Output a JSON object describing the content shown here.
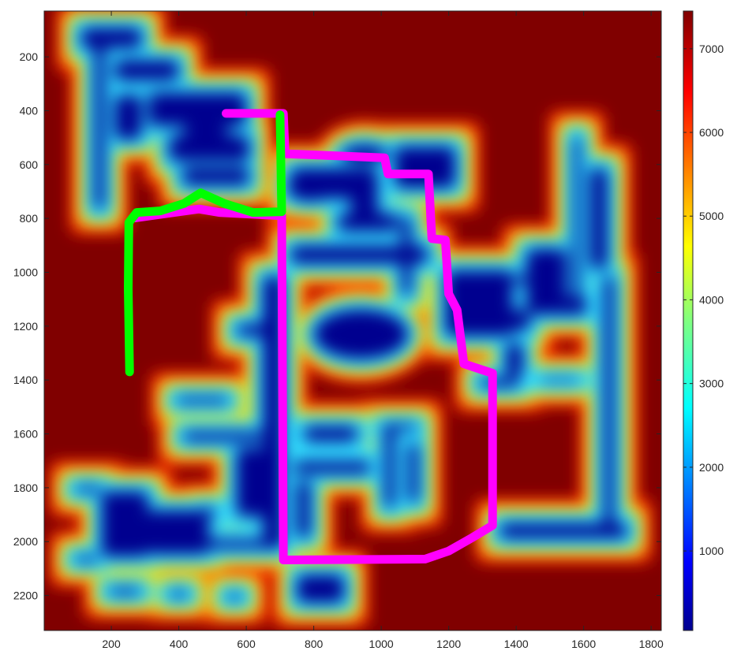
{
  "chart_data": {
    "type": "heatmap",
    "title": "",
    "xlabel": "",
    "ylabel": "",
    "xlim": [
      1,
      1830
    ],
    "ylim": [
      2330,
      30
    ],
    "y_reversed": true,
    "x_ticks": [
      200,
      400,
      600,
      800,
      1000,
      1200,
      1400,
      1600,
      1800
    ],
    "y_ticks": [
      200,
      400,
      600,
      800,
      1000,
      1200,
      1400,
      1600,
      1800,
      2000,
      2200
    ],
    "colormap": "jet",
    "colorbar": {
      "range": [
        50,
        7450
      ],
      "ticks": [
        1000,
        2000,
        3000,
        4000,
        5000,
        6000,
        7000
      ]
    },
    "colors": {
      "background_max": "#800000",
      "free_space_min": "#00008f",
      "path_1": "#ff00ff",
      "path_2": "#00ff00"
    },
    "series": [
      {
        "color": "#ff00ff",
        "points": [
          [
            540,
            410
          ],
          [
            710,
            410
          ],
          [
            715,
            560
          ],
          [
            1010,
            575
          ],
          [
            1020,
            635
          ],
          [
            1140,
            635
          ],
          [
            1150,
            875
          ],
          [
            1190,
            880
          ],
          [
            1200,
            1080
          ],
          [
            1225,
            1140
          ],
          [
            1245,
            1340
          ],
          [
            1330,
            1375
          ],
          [
            1330,
            1940
          ],
          [
            1270,
            1985
          ],
          [
            1200,
            2035
          ],
          [
            1130,
            2065
          ],
          [
            710,
            2068
          ],
          [
            705,
            790
          ],
          [
            520,
            778
          ],
          [
            460,
            765
          ],
          [
            270,
            798
          ]
        ]
      },
      {
        "color": "#00ff00",
        "points": [
          [
            700,
            415
          ],
          [
            705,
            775
          ],
          [
            620,
            778
          ],
          [
            535,
            745
          ],
          [
            465,
            705
          ],
          [
            415,
            745
          ],
          [
            345,
            772
          ],
          [
            275,
            778
          ],
          [
            252,
            815
          ],
          [
            250,
            1060
          ],
          [
            254,
            1370
          ]
        ]
      }
    ],
    "blobs": [
      {
        "shape": "rect",
        "x": [
          100,
          300
        ],
        "y": [
          80,
          180
        ]
      },
      {
        "shape": "rect",
        "x": [
          140,
          190
        ],
        "y": [
          80,
          780
        ]
      },
      {
        "shape": "rect",
        "x": [
          200,
          410
        ],
        "y": [
          200,
          300
        ]
      },
      {
        "shape": "rect",
        "x": [
          200,
          300
        ],
        "y": [
          330,
          520
        ]
      },
      {
        "shape": "rect",
        "x": [
          300,
          610
        ],
        "y": [
          320,
          470
        ]
      },
      {
        "shape": "ellipse",
        "cx": 480,
        "cy": 480,
        "rx": 75,
        "ry": 55
      },
      {
        "shape": "rect",
        "x": [
          400,
          620
        ],
        "y": [
          600,
          690
        ]
      },
      {
        "shape": "rect",
        "x": [
          360,
          620
        ],
        "y": [
          480,
          600
        ]
      },
      {
        "shape": "rect",
        "x": [
          720,
          1000
        ],
        "y": [
          600,
          740
        ]
      },
      {
        "shape": "ellipse",
        "cx": 790,
        "cy": 690,
        "rx": 80,
        "ry": 60
      },
      {
        "shape": "ellipse",
        "cx": 950,
        "cy": 560,
        "rx": 80,
        "ry": 45
      },
      {
        "shape": "rect",
        "x": [
          900,
          1000
        ],
        "y": [
          620,
          800
        ]
      },
      {
        "shape": "rect",
        "x": [
          1030,
          1230
        ],
        "y": [
          520,
          700
        ]
      },
      {
        "shape": "rect",
        "x": [
          860,
          1060
        ],
        "y": [
          770,
          860
        ]
      },
      {
        "shape": "rect",
        "x": [
          720,
          1150
        ],
        "y": [
          890,
          980
        ]
      },
      {
        "shape": "rect",
        "x": [
          1050,
          1100
        ],
        "y": [
          780,
          1100
        ]
      },
      {
        "shape": "ellipse",
        "cx": 940,
        "cy": 1230,
        "rx": 150,
        "ry": 105
      },
      {
        "shape": "rect",
        "x": [
          1180,
          1400
        ],
        "y": [
          980,
          1250
        ]
      },
      {
        "shape": "rect",
        "x": [
          1260,
          1450
        ],
        "y": [
          1130,
          1230
        ]
      },
      {
        "shape": "rect",
        "x": [
          1420,
          1560
        ],
        "y": [
          900,
          1130
        ]
      },
      {
        "shape": "rect",
        "x": [
          1350,
          1520
        ],
        "y": [
          1000,
          1050
        ]
      },
      {
        "shape": "rect",
        "x": [
          1560,
          1600
        ],
        "y": [
          480,
          1150
        ]
      },
      {
        "shape": "rect",
        "x": [
          1610,
          1680
        ],
        "y": [
          600,
          1000
        ]
      },
      {
        "shape": "rect",
        "x": [
          1650,
          1700
        ],
        "y": [
          1000,
          1960
        ]
      },
      {
        "shape": "rect",
        "x": [
          1340,
          1740
        ],
        "y": [
          1920,
          2000
        ]
      },
      {
        "shape": "rect",
        "x": [
          1280,
          1420
        ],
        "y": [
          1380,
          1440
        ]
      },
      {
        "shape": "rect",
        "x": [
          1420,
          1620
        ],
        "y": [
          1080,
          1170
        ]
      },
      {
        "shape": "rect",
        "x": [
          1460,
          1600
        ],
        "y": [
          1380,
          1420
        ]
      },
      {
        "shape": "rect",
        "x": [
          1360,
          1430
        ],
        "y": [
          1250,
          1400
        ]
      },
      {
        "shape": "rect",
        "x": [
          990,
          1120
        ],
        "y": [
          1550,
          1600
        ]
      },
      {
        "shape": "rect",
        "x": [
          1000,
          1050
        ],
        "y": [
          1560,
          1890
        ]
      },
      {
        "shape": "rect",
        "x": [
          1070,
          1120
        ],
        "y": [
          1620,
          1870
        ]
      },
      {
        "shape": "rect",
        "x": [
          730,
          980
        ],
        "y": [
          1690,
          1760
        ]
      },
      {
        "shape": "rect",
        "x": [
          740,
          800
        ],
        "y": [
          1760,
          2000
        ]
      },
      {
        "shape": "rect",
        "x": [
          760,
          940
        ],
        "y": [
          1560,
          1640
        ]
      },
      {
        "shape": "rect",
        "x": [
          640,
          720
        ],
        "y": [
          1000,
          2040
        ]
      },
      {
        "shape": "rect",
        "x": [
          560,
          720
        ],
        "y": [
          1180,
          1250
        ]
      },
      {
        "shape": "rect",
        "x": [
          380,
          560
        ],
        "y": [
          1450,
          1500
        ]
      },
      {
        "shape": "rect",
        "x": [
          560,
          700
        ],
        "y": [
          1640,
          1920
        ]
      },
      {
        "shape": "rect",
        "x": [
          400,
          660
        ],
        "y": [
          1580,
          1640
        ]
      },
      {
        "shape": "rect",
        "x": [
          160,
          320
        ],
        "y": [
          1800,
          2070
        ]
      },
      {
        "shape": "rect",
        "x": [
          300,
          500
        ],
        "y": [
          1870,
          2060
        ]
      },
      {
        "shape": "rect",
        "x": [
          420,
          700
        ],
        "y": [
          1980,
          2040
        ]
      },
      {
        "shape": "rect",
        "x": [
          80,
          180
        ],
        "y": [
          1780,
          1830
        ]
      },
      {
        "shape": "rect",
        "x": [
          80,
          170
        ],
        "y": [
          2040,
          2090
        ]
      },
      {
        "shape": "rect",
        "x": [
          180,
          300
        ],
        "y": [
          2160,
          2210
        ]
      },
      {
        "shape": "rect",
        "x": [
          360,
          440
        ],
        "y": [
          2170,
          2220
        ]
      },
      {
        "shape": "rect",
        "x": [
          740,
          900
        ],
        "y": [
          2110,
          2240
        ]
      },
      {
        "shape": "rect",
        "x": [
          530,
          600
        ],
        "y": [
          2180,
          2230
        ]
      },
      {
        "shape": "rect",
        "x": [
          460,
          520
        ],
        "y": [
          1860,
          1920
        ]
      }
    ]
  }
}
